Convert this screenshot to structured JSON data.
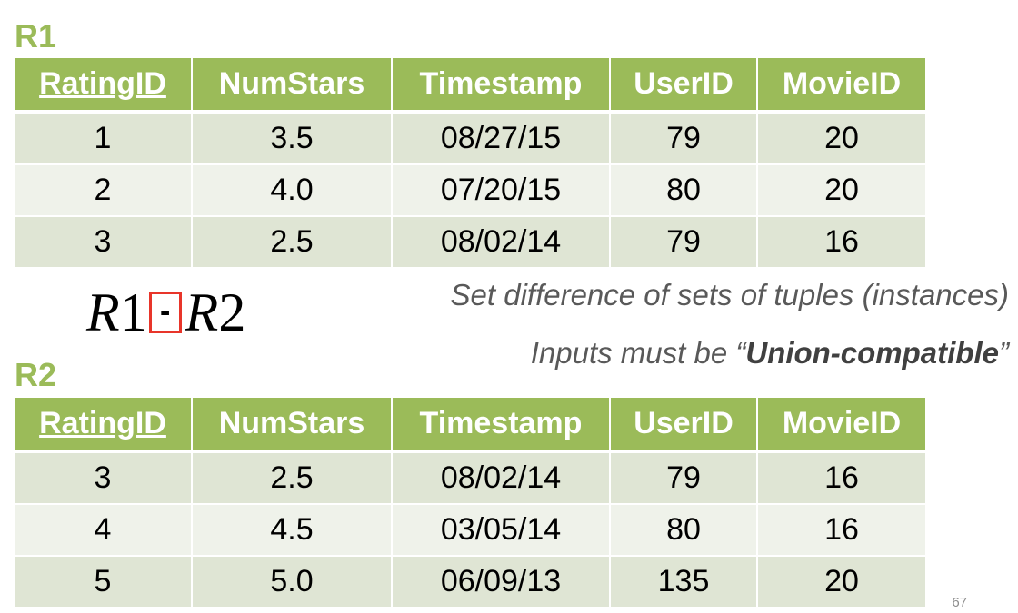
{
  "relations": {
    "r1": {
      "label": "R1",
      "columns": [
        "RatingID",
        "NumStars",
        "Timestamp",
        "UserID",
        "MovieID"
      ],
      "rows": [
        [
          "1",
          "3.5",
          "08/27/15",
          "79",
          "20"
        ],
        [
          "2",
          "4.0",
          "07/20/15",
          "80",
          "20"
        ],
        [
          "3",
          "2.5",
          "08/02/14",
          "79",
          "16"
        ]
      ]
    },
    "r2": {
      "label": "R2",
      "columns": [
        "RatingID",
        "NumStars",
        "Timestamp",
        "UserID",
        "MovieID"
      ],
      "rows": [
        [
          "3",
          "2.5",
          "08/02/14",
          "79",
          "16"
        ],
        [
          "4",
          "4.5",
          "03/05/14",
          "80",
          "16"
        ],
        [
          "5",
          "5.0",
          "06/09/13",
          "135",
          "20"
        ]
      ]
    }
  },
  "formula": {
    "left_operand": "R",
    "left_index": "1",
    "operator": "-",
    "right_operand": "R",
    "right_index": "2"
  },
  "captions": {
    "line1": "Set difference of sets of tuples (instances)",
    "line2_prefix": "Inputs must be “",
    "line2_emphasis": "Union-compatible",
    "line2_suffix": "”"
  },
  "page_number": "67",
  "colors": {
    "accent": "#9bbb59",
    "row_dark": "#dfe5d4",
    "row_light": "#eff2ea",
    "operator_box": "#e8352a"
  }
}
